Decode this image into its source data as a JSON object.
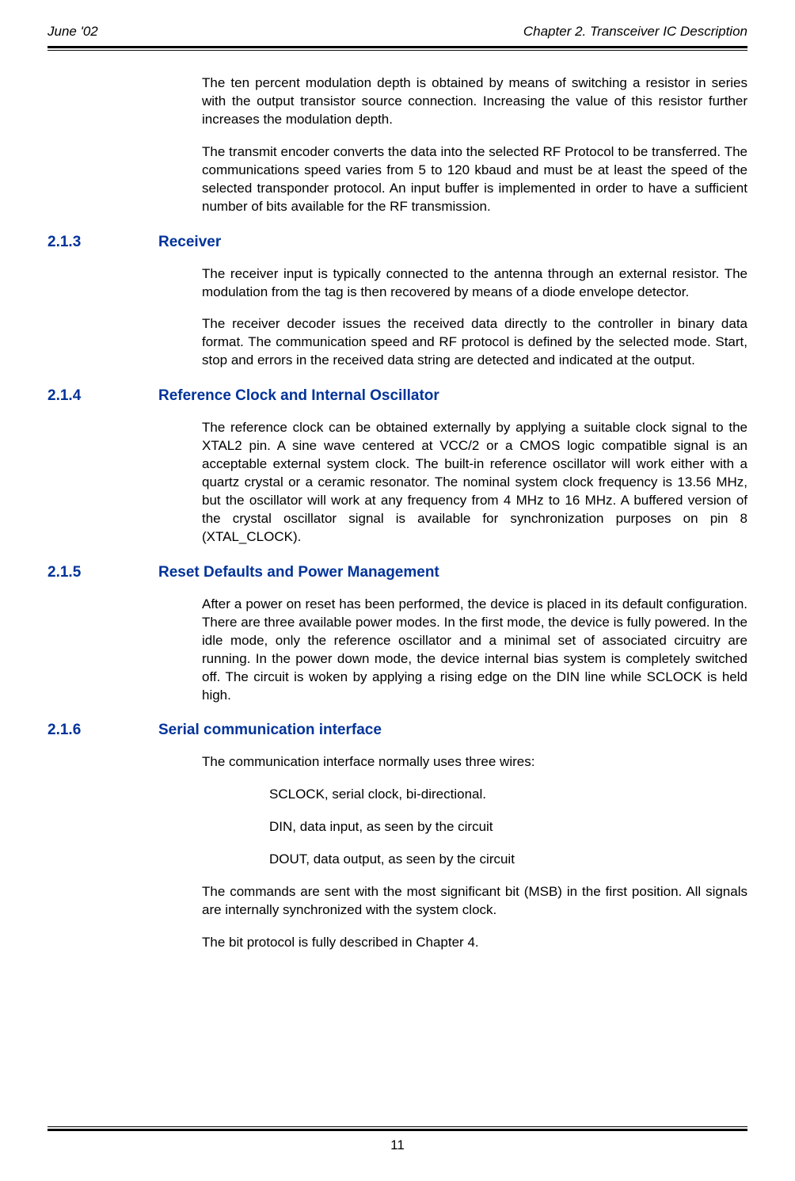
{
  "header": {
    "left": "June '02",
    "right": "Chapter 2. Transceiver IC Description"
  },
  "intro": {
    "p1": "The ten percent modulation depth is obtained by means of switching a resistor in series with the output transistor source connection. Increasing the value of this resistor further increases the modulation depth.",
    "p2": "The transmit encoder converts the data into the selected RF Protocol to be transferred. The communications speed varies from 5 to 120 kbaud and must be at least the speed of the selected transponder protocol. An input buffer is implemented in order to have a sufficient number of bits available for the RF transmission."
  },
  "s213": {
    "number": "2.1.3",
    "title": "Receiver",
    "p1": "The receiver input is typically connected to the antenna through an external resistor. The modulation from the tag is then recovered by means of a diode envelope detector.",
    "p2": "The receiver decoder issues the received data directly to the controller in binary data format. The communication speed and RF protocol is defined by the selected mode. Start, stop and errors in the received data string are detected and indicated at the output."
  },
  "s214": {
    "number": "2.1.4",
    "title": "Reference Clock and Internal Oscillator",
    "p1": "The reference clock can be obtained externally by applying a suitable clock signal to the XTAL2 pin. A sine wave centered at VCC/2 or a CMOS logic compatible signal is an acceptable external system clock. The built-in reference oscillator will work either with a quartz crystal or a ceramic resonator. The nominal system clock frequency is 13.56 MHz, but the oscillator will work at any frequency from 4 MHz to 16 MHz. A buffered version of the crystal oscillator signal is available for synchronization purposes on pin 8 (XTAL_CLOCK)."
  },
  "s215": {
    "number": "2.1.5",
    "title": "Reset Defaults and Power Management",
    "p1": "After a power on reset has been performed, the device is placed in its default configuration. There are three available power modes. In the first mode, the device is fully powered. In the idle mode, only the reference oscillator and a minimal set of associated circuitry are running. In the power down mode, the device internal bias system is completely switched off. The circuit is woken by applying a rising edge on the DIN line while SCLOCK is held high."
  },
  "s216": {
    "number": "2.1.6",
    "title": "Serial communication interface",
    "p1": "The communication interface normally uses three wires:",
    "item1": "SCLOCK, serial clock, bi-directional.",
    "item2": "DIN, data input, as seen by the circuit",
    "item3": "DOUT, data output, as seen by the circuit",
    "p2": "The commands are sent with the most significant bit (MSB) in the first position. All signals are internally synchronized with the system clock.",
    "p3": "The bit protocol is fully described in Chapter 4."
  },
  "footer": {
    "page": "11"
  }
}
